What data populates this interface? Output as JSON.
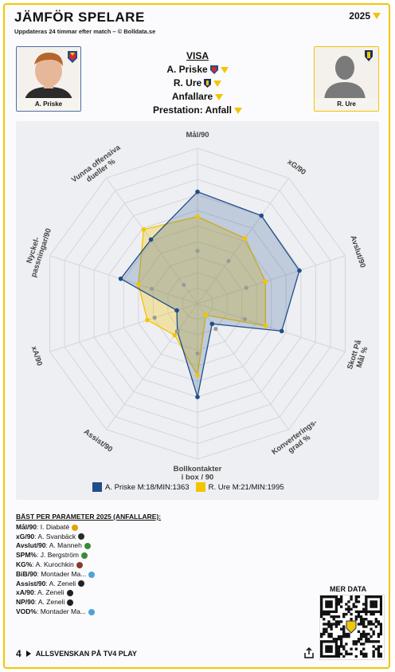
{
  "header": {
    "title": "JÄMFÖR SPELARE",
    "subtitle": "Uppdateras 24 timmar efter match – © Bolldata.se",
    "year": "2025"
  },
  "players": {
    "left_name": "A. Priske",
    "right_name": "R. Ure"
  },
  "visa": {
    "header": "VISA",
    "player1": "A. Priske",
    "player2": "R. Ure",
    "position": "Anfallare",
    "prestation": "Prestation: Anfall"
  },
  "chart_data": {
    "type": "radar",
    "axes": [
      "Mål/90",
      "xG/90",
      "Avslut/90",
      "Skott På Mål %",
      "Konverterings-grad %",
      "Bollkontakter i box / 90",
      "Assist/90",
      "xA/90",
      "Nyckel-passningar/90",
      "Vunna offensiva dueller %"
    ],
    "axis_label_lines": [
      [
        "Mål/90"
      ],
      [
        "xG/90"
      ],
      [
        "Avslut/90"
      ],
      [
        "Skott På",
        "Mål %"
      ],
      [
        "Konverterings-",
        "grad %"
      ],
      [
        "Bollkontakter",
        "i box / 90"
      ],
      [
        "Assist/90"
      ],
      [
        "xA/90"
      ],
      [
        "Nyckel-",
        "passningar/90"
      ],
      [
        "Vunna offensiva",
        "dueller %"
      ]
    ],
    "range": [
      0,
      1
    ],
    "grid": true,
    "series": [
      {
        "name": "A. Priske M:18/MIN:1363",
        "color": "#1f4e89",
        "values": [
          0.72,
          0.7,
          0.69,
          0.57,
          0.16,
          0.6,
          0.22,
          0.14,
          0.52,
          0.51
        ]
      },
      {
        "name": "R. Ure M:21/MIN:1995",
        "color": "#f2c500",
        "values": [
          0.56,
          0.52,
          0.46,
          0.46,
          0.09,
          0.46,
          0.25,
          0.34,
          0.4,
          0.59
        ]
      }
    ],
    "inner_markers": [
      [
        0.34,
        0.34,
        0.33,
        0.32,
        0.2,
        0.32,
        0.22,
        0.29,
        0.31,
        0.15
      ]
    ]
  },
  "best": {
    "header": "BÄST PER PARAMETER 2025 (ANFALLARE):",
    "rows": [
      {
        "k": "Mål/90",
        "v": "I. Diabaté",
        "c": "#e0a400"
      },
      {
        "k": "xG/90",
        "v": "A. Svanbäck",
        "c": "#2a2a2a"
      },
      {
        "k": "Avslut/90",
        "v": "A. Manneh",
        "c": "#3a8a3a"
      },
      {
        "k": "SPM%",
        "v": "J. Bergström",
        "c": "#3a8a3a"
      },
      {
        "k": "KG%",
        "v": "A. Kurochkin",
        "c": "#8a3a2a"
      },
      {
        "k": "BiB/90",
        "v": "Montader Ma...",
        "c": "#4aa3d9"
      },
      {
        "k": "Assist/90",
        "v": "A. Zeneli",
        "c": "#222222"
      },
      {
        "k": "xA/90",
        "v": "A. Zeneli",
        "c": "#222222"
      },
      {
        "k": "NP/90",
        "v": "A. Zeneli",
        "c": "#222222"
      },
      {
        "k": "VOD%",
        "v": "Montader Ma...",
        "c": "#4aa3d9"
      }
    ]
  },
  "footer": {
    "mer_data": "MER DATA",
    "tv4_logo": "4",
    "text": "ALLSVENSKAN PÅ TV4 PLAY"
  }
}
